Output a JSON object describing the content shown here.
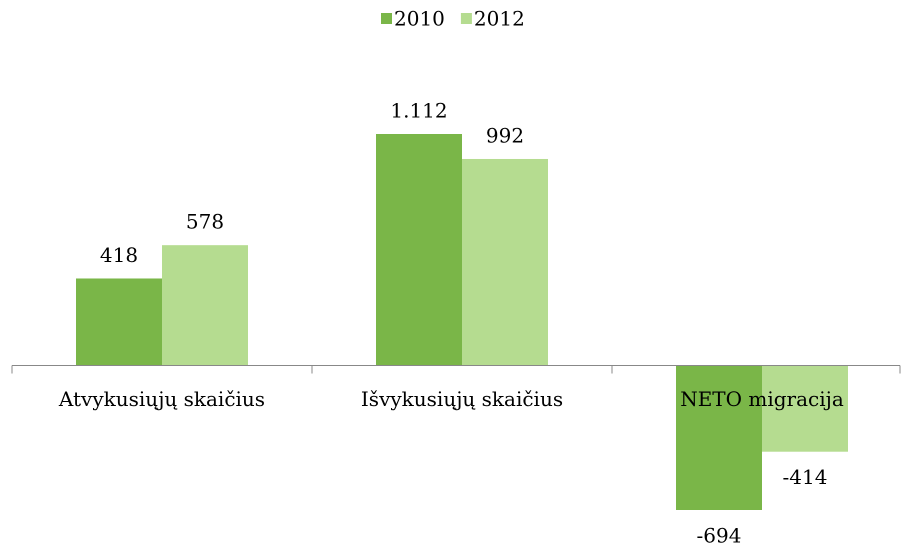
{
  "chart_data": {
    "type": "bar",
    "categories": [
      "Atvykusiųjų skaičius",
      "Išvykusiųjų skaičius",
      "NETO migracija"
    ],
    "series": [
      {
        "name": "2010",
        "color": "#7ab648",
        "values": [
          418,
          1112,
          -694
        ],
        "value_labels": [
          "418",
          "1.112",
          "-694"
        ]
      },
      {
        "name": "2012",
        "color": "#b5dc90",
        "values": [
          578,
          992,
          -414
        ]
      }
    ],
    "legend": "top"
  }
}
